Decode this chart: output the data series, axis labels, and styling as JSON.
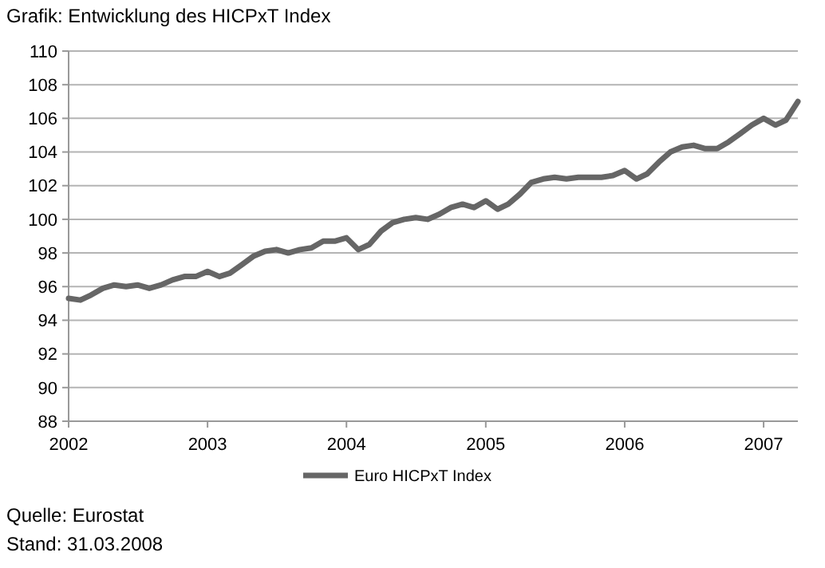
{
  "chart_data": {
    "type": "line",
    "title": "Grafik: Entwicklung des HICPxT Index",
    "x": [
      "2002-01",
      "2002-02",
      "2002-03",
      "2002-04",
      "2002-05",
      "2002-06",
      "2002-07",
      "2002-08",
      "2002-09",
      "2002-10",
      "2002-11",
      "2002-12",
      "2003-01",
      "2003-02",
      "2003-03",
      "2003-04",
      "2003-05",
      "2003-06",
      "2003-07",
      "2003-08",
      "2003-09",
      "2003-10",
      "2003-11",
      "2003-12",
      "2004-01",
      "2004-02",
      "2004-03",
      "2004-04",
      "2004-05",
      "2004-06",
      "2004-07",
      "2004-08",
      "2004-09",
      "2004-10",
      "2004-11",
      "2004-12",
      "2005-01",
      "2005-02",
      "2005-03",
      "2005-04",
      "2005-05",
      "2005-06",
      "2005-07",
      "2005-08",
      "2005-09",
      "2005-10",
      "2005-11",
      "2005-12",
      "2006-01",
      "2006-02",
      "2006-03",
      "2006-04",
      "2006-05",
      "2006-06",
      "2006-07",
      "2006-08",
      "2006-09",
      "2006-10",
      "2006-11",
      "2006-12",
      "2007-01",
      "2007-02",
      "2007-03",
      "2007-04"
    ],
    "series": [
      {
        "name": "Euro HICPxT Index",
        "color": "#666666",
        "values": [
          95.3,
          95.2,
          95.5,
          95.9,
          96.1,
          96.0,
          96.1,
          95.9,
          96.1,
          96.4,
          96.6,
          96.6,
          96.9,
          96.6,
          96.8,
          97.3,
          97.8,
          98.1,
          98.2,
          98.0,
          98.2,
          98.3,
          98.7,
          98.7,
          98.9,
          98.2,
          98.5,
          99.3,
          99.8,
          100.0,
          100.1,
          100.0,
          100.3,
          100.7,
          100.9,
          100.7,
          101.1,
          100.6,
          100.9,
          101.5,
          102.2,
          102.4,
          102.5,
          102.4,
          102.5,
          102.5,
          102.5,
          102.6,
          102.9,
          102.4,
          102.7,
          103.4,
          104.0,
          104.3,
          104.4,
          104.2,
          104.2,
          104.6,
          105.1,
          105.6,
          106.0,
          105.6,
          105.9,
          107.0
        ]
      }
    ],
    "xlim": [
      "2002-01",
      "2007-04"
    ],
    "xticks": [
      "2002",
      "2003",
      "2004",
      "2005",
      "2006",
      "2007"
    ],
    "ylim": [
      88,
      110
    ],
    "yticks": [
      88,
      90,
      92,
      94,
      96,
      98,
      100,
      102,
      104,
      106,
      108,
      110
    ],
    "grid": "y",
    "legend": "bottom",
    "line_style": "solid",
    "marker": "none",
    "annotations": [
      "Quelle: Eurostat",
      "Stand: 31.03.2008"
    ]
  }
}
